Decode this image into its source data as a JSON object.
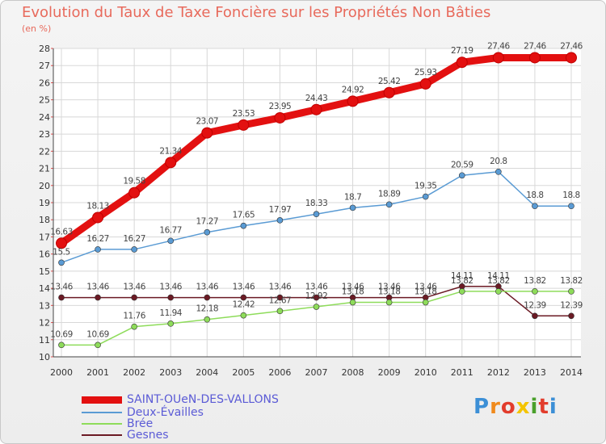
{
  "header": {
    "title": "Evolution du Taux de Taxe Foncière sur les Propriétés Non Bâties",
    "subtitle": "(en %)"
  },
  "brand": {
    "letters": [
      "P",
      "r",
      "o",
      "x",
      "i",
      "t",
      "i"
    ],
    "colors": [
      "#3c8fd6",
      "#f08a1c",
      "#e23c2c",
      "#f4c400",
      "#4aa02c",
      "#e23c2c",
      "#3c8fd6"
    ]
  },
  "chart_data": {
    "type": "line",
    "x": [
      "2000",
      "2001",
      "2002",
      "2003",
      "2004",
      "2005",
      "2006",
      "2007",
      "2008",
      "2009",
      "2010",
      "2011",
      "2012",
      "2013",
      "2014"
    ],
    "ylim": [
      10,
      28
    ],
    "yticks": [
      "10",
      "11",
      "12",
      "13",
      "14",
      "15",
      "16",
      "17",
      "18",
      "19",
      "20",
      "21",
      "22",
      "23",
      "24",
      "25",
      "26",
      "27",
      "28"
    ],
    "grid": true,
    "legend_position": "bottom-left",
    "series": [
      {
        "name": "SAINT-OUeN-DES-VALLONS",
        "color": "#e31010",
        "width": 9,
        "values": [
          16.63,
          18.13,
          19.58,
          21.34,
          23.07,
          23.53,
          23.95,
          24.43,
          24.92,
          25.42,
          25.93,
          27.19,
          27.46,
          27.46,
          27.46
        ],
        "labels": [
          "16.63",
          "18.13",
          "19.58",
          "21.34",
          "23.07",
          "23.53",
          "23.95",
          "24.43",
          "24.92",
          "25.42",
          "25.93",
          "27.19",
          "27.46",
          "27.46",
          "27.46"
        ]
      },
      {
        "name": "Deux-Évailles",
        "color": "#5a9bd4",
        "width": 1.5,
        "values": [
          15.5,
          16.27,
          16.27,
          16.77,
          17.27,
          17.65,
          17.97,
          18.33,
          18.7,
          18.89,
          19.35,
          20.59,
          20.8,
          18.8,
          18.8
        ],
        "labels": [
          "15.5",
          "16.27",
          "16.27",
          "16.77",
          "17.27",
          "17.65",
          "17.97",
          "18.33",
          "18.7",
          "18.89",
          "19.35",
          "20.59",
          "20.8",
          "18.8",
          "18.8"
        ]
      },
      {
        "name": "Brée",
        "color": "#8edc5a",
        "width": 1.5,
        "values": [
          10.69,
          10.69,
          11.76,
          11.94,
          12.18,
          12.42,
          12.67,
          12.92,
          13.18,
          13.18,
          13.18,
          13.82,
          13.82,
          13.82,
          13.82
        ],
        "labels": [
          "10.69",
          "10.69",
          "11.76",
          "11.94",
          "12.18",
          "12.42",
          "12.67",
          "12.92",
          "13.18",
          "13.18",
          "13.18",
          "13.82",
          "13.82",
          "13.82",
          "13.82"
        ]
      },
      {
        "name": "Gesnes",
        "color": "#6b1a24",
        "width": 1.5,
        "values": [
          13.46,
          13.46,
          13.46,
          13.46,
          13.46,
          13.46,
          13.46,
          13.46,
          13.46,
          13.46,
          13.46,
          14.11,
          14.11,
          12.39,
          12.39
        ],
        "labels": [
          "13.46",
          "13.46",
          "13.46",
          "13.46",
          "13.46",
          "13.46",
          "13.46",
          "13.46",
          "13.46",
          "13.46",
          "13.46",
          "14.11",
          "14.11",
          "12.39",
          "12.39"
        ]
      }
    ]
  }
}
